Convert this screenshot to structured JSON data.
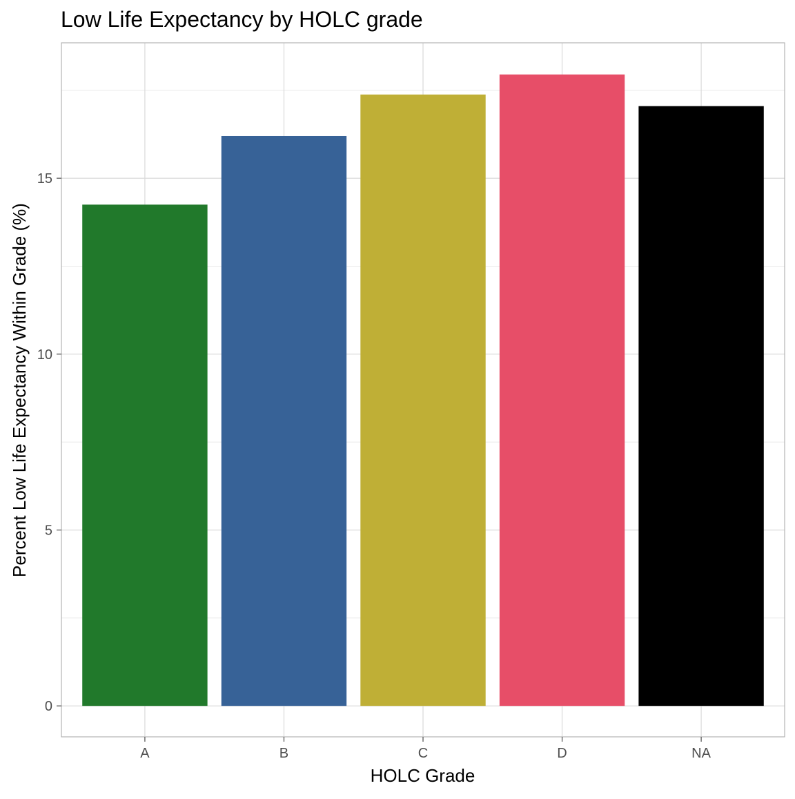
{
  "chart_data": {
    "type": "bar",
    "title": "Low Life Expectancy by HOLC grade",
    "xlabel": "HOLC Grade",
    "ylabel": "Percent Low Life Expectancy Within Grade (%)",
    "categories": [
      "A",
      "B",
      "C",
      "D",
      "NA"
    ],
    "values": [
      14.25,
      16.2,
      17.38,
      17.95,
      17.05
    ],
    "colors": [
      "#21792b",
      "#376297",
      "#bfaf36",
      "#e74e68",
      "#000000"
    ],
    "ylim": [
      -0.88,
      18.85
    ],
    "yticks": [
      0,
      5,
      10,
      15
    ],
    "ytick_labels": [
      "0",
      "5",
      "10",
      "15"
    ],
    "grid": true,
    "legend": "none"
  }
}
